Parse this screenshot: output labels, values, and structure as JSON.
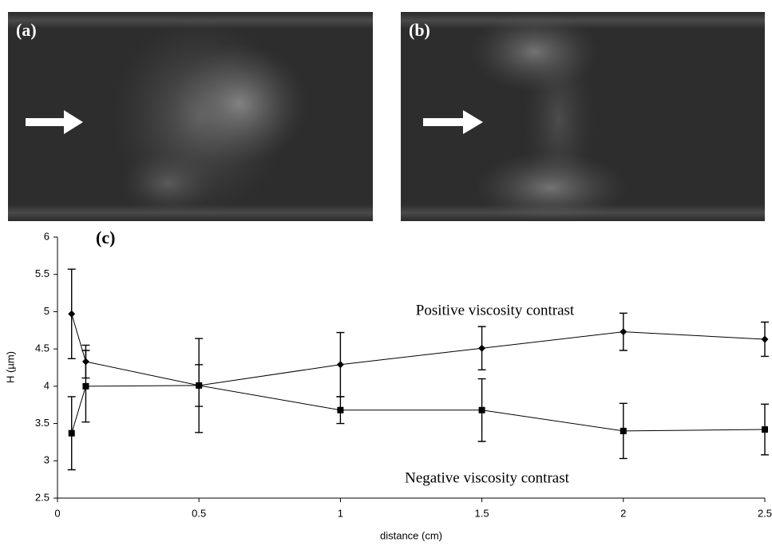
{
  "panel_labels": [
    "(a)",
    "(b)"
  ],
  "chart_data": {
    "type": "line",
    "panel_label": "(c)",
    "x_label": "distance (cm)",
    "y_label": "H (µm)",
    "x": [
      0.05,
      0.1,
      0.5,
      1,
      1.5,
      2,
      2.5
    ],
    "series": [
      {
        "name": "Positive viscosity contrast",
        "color": "#000000",
        "marker": "diamond",
        "values": [
          4.97,
          4.33,
          4.01,
          4.29,
          4.51,
          4.73,
          4.63
        ],
        "errors": [
          0.6,
          0.22,
          0.63,
          0.43,
          0.29,
          0.25,
          0.23
        ]
      },
      {
        "name": "Negative viscosity contrast",
        "color": "#000000",
        "marker": "square",
        "values": [
          3.37,
          4.0,
          4.01,
          3.68,
          3.68,
          3.4,
          3.42
        ],
        "errors": [
          0.49,
          0.48,
          0.28,
          0.18,
          0.42,
          0.37,
          0.34
        ]
      }
    ],
    "xlim": [
      0,
      2.5
    ],
    "ylim": [
      2.5,
      6
    ],
    "xticks": [
      0,
      0.5,
      1,
      1.5,
      2,
      2.5
    ],
    "yticks": [
      2.5,
      3,
      3.5,
      4,
      4.5,
      5,
      5.5,
      6
    ]
  }
}
